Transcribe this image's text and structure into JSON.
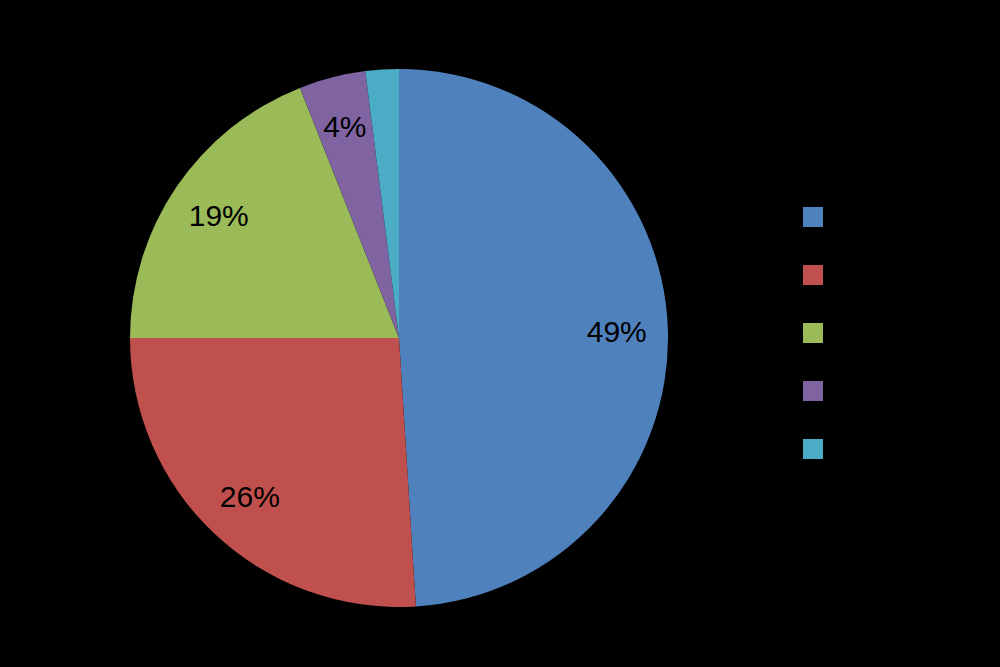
{
  "chart_data": {
    "type": "pie",
    "values": [
      49,
      26,
      19,
      4,
      2
    ],
    "value_labels": [
      "49%",
      "26%",
      "19%",
      "4%",
      null
    ],
    "colors": [
      "#4f81bd",
      "#c0504d",
      "#9bbb59",
      "#8064a2",
      "#4bacc6"
    ],
    "data_labels": true,
    "legend": "right"
  }
}
